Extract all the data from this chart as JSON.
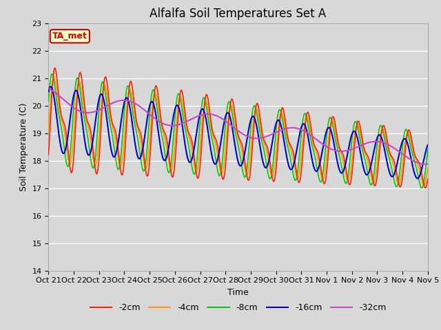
{
  "title": "Alfalfa Soil Temperatures Set A",
  "xlabel": "Time",
  "ylabel": "Soil Temperature (C)",
  "ylim": [
    14.0,
    23.0
  ],
  "yticks": [
    14.0,
    15.0,
    16.0,
    17.0,
    18.0,
    19.0,
    20.0,
    21.0,
    22.0,
    23.0
  ],
  "plot_bg_color": "#d8d8d8",
  "fig_bg_color": "#d8d8d8",
  "ta_met_label": "TA_met",
  "ta_met_box_color": "#ffffcc",
  "ta_met_border_color": "#cc0000",
  "legend_labels": [
    "-2cm",
    "-4cm",
    "-8cm",
    "-16cm",
    "-32cm"
  ],
  "line_colors": [
    "#ff2200",
    "#ff9900",
    "#00cc00",
    "#0000cc",
    "#cc44cc"
  ],
  "line_widths": [
    1.2,
    1.2,
    1.2,
    1.5,
    1.5
  ],
  "xtick_labels": [
    "Oct 21",
    "Oct 22",
    "Oct 23",
    "Oct 24",
    "Oct 25",
    "Oct 26",
    "Oct 27",
    "Oct 28",
    "Oct 29",
    "Oct 30",
    "Oct 31",
    "Nov 1",
    "Nov 2",
    "Nov 3",
    "Nov 4",
    "Nov 5"
  ],
  "title_fontsize": 12,
  "axis_label_fontsize": 9,
  "tick_fontsize": 8,
  "legend_fontsize": 9
}
